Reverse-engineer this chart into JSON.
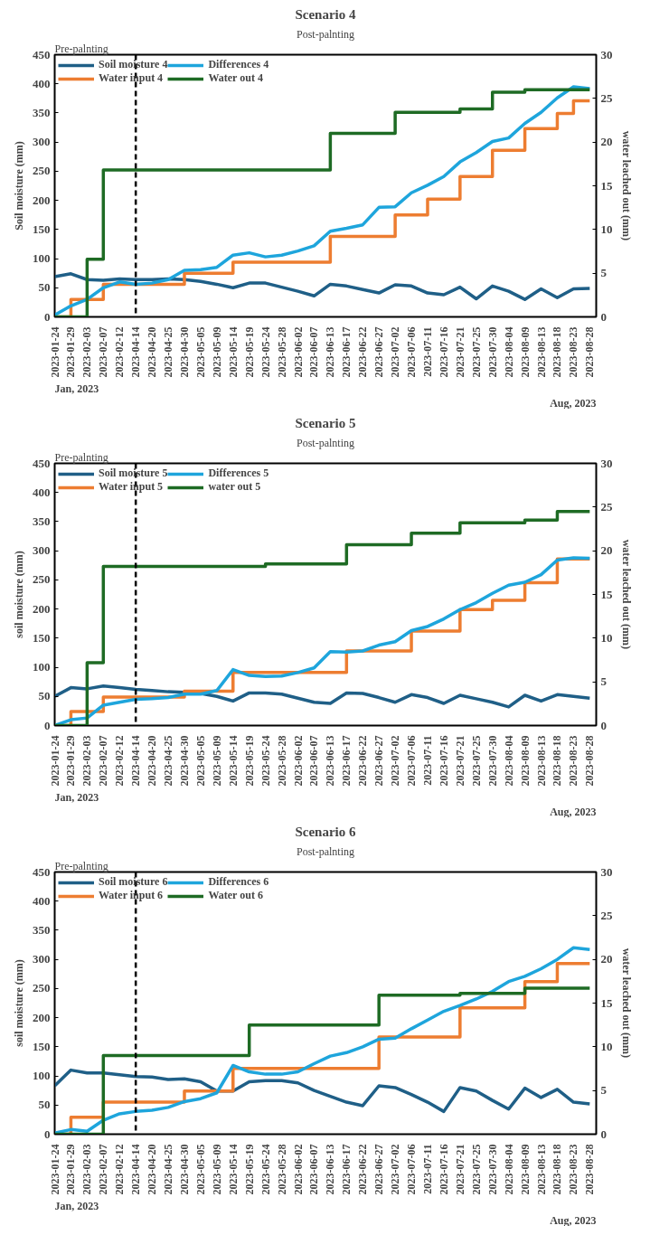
{
  "chart_data": [
    {
      "type": "line",
      "title": "Scenario 4",
      "ylabel": "Soil moisture (mm)",
      "y2label": "water leached out (mm)",
      "categories": [
        "2023-01-24",
        "2023-01-29",
        "2023-02-03",
        "2023-02-07",
        "2023-02-12",
        "2023-04-14",
        "2023-04-20",
        "2023-04-25",
        "2023-04-30",
        "2023-05-05",
        "2023-05-09",
        "2023-05-14",
        "2023-05-19",
        "2023-05-24",
        "2023-05-28",
        "2023-06-02",
        "2023-06-07",
        "2023-06-13",
        "2023-06-17",
        "2023-06-22",
        "2023-06-27",
        "2023-07-02",
        "2023-07-06",
        "2023-07-11",
        "2023-07-16",
        "2023-07-21",
        "2023-07-25",
        "2023-07-30",
        "2023-08-04",
        "2023-08-09",
        "2023-08-13",
        "2023-08-18",
        "2023-08-23",
        "2023-08-28"
      ],
      "series": [
        {
          "name": "Soil moisture 4",
          "type": "line",
          "color": "#1f5f87",
          "values": [
            69,
            74,
            64,
            63,
            65,
            64,
            64,
            65,
            64,
            61,
            56,
            50,
            58,
            58,
            51,
            44,
            36,
            56,
            53,
            47,
            41,
            55,
            53,
            41,
            38,
            51,
            31,
            53,
            44,
            30,
            48,
            33,
            48,
            49
          ]
        },
        {
          "name": "Water input 4",
          "type": "step",
          "color": "#ed7d31",
          "values": [
            0,
            30,
            30,
            56,
            56,
            56,
            56,
            56,
            75,
            75,
            75,
            94,
            94,
            94,
            94,
            94,
            94,
            138,
            138,
            138,
            138,
            175,
            175,
            202,
            202,
            241,
            241,
            286,
            286,
            323,
            323,
            349,
            371,
            371
          ]
        },
        {
          "name": "Differences 4",
          "type": "line",
          "color": "#1ea5dc",
          "values": [
            3,
            19,
            30,
            50,
            60,
            56,
            58,
            64,
            80,
            81,
            85,
            106,
            110,
            103,
            106,
            113,
            122,
            147,
            152,
            158,
            188,
            189,
            213,
            226,
            241,
            266,
            282,
            301,
            307,
            332,
            351,
            376,
            395,
            392
          ]
        },
        {
          "name": "Water out 4",
          "type": "step",
          "axis": "y2",
          "color": "#1e6b24",
          "values": [
            0,
            0,
            6.6,
            16.8,
            16.8,
            16.8,
            16.8,
            16.8,
            16.8,
            16.8,
            16.8,
            16.8,
            16.8,
            16.8,
            16.8,
            16.8,
            16.8,
            21,
            21,
            21,
            21,
            23.4,
            23.4,
            23.4,
            23.4,
            23.8,
            23.8,
            25.7,
            25.7,
            26,
            26,
            26,
            26,
            26
          ]
        }
      ],
      "ylim": [
        0,
        450
      ],
      "yticks": [
        0,
        50,
        100,
        150,
        200,
        250,
        300,
        350,
        400,
        450
      ],
      "y2lim": [
        0,
        30
      ],
      "y2ticks": [
        0,
        5,
        10,
        15,
        20,
        25,
        30
      ],
      "ref_lines": [
        {
          "axis": "x",
          "value": "2023-04-14",
          "line_style": "dashed",
          "color": "#000000"
        }
      ],
      "annotations": [
        "Pre-palnting",
        "Post-palnting",
        "Jan, 2023",
        "Aug, 2023"
      ],
      "legend": "top left",
      "grid": false,
      "marker": "none"
    },
    {
      "type": "line",
      "title": "Scenario 5",
      "ylabel": "soil moisture (mm)",
      "y2label": "water leached out (mm)",
      "categories": [
        "2023-01-24",
        "2023-01-29",
        "2023-02-03",
        "2023-02-07",
        "2023-02-12",
        "2023-04-14",
        "2023-04-20",
        "2023-04-25",
        "2023-04-30",
        "2023-05-05",
        "2023-05-09",
        "2023-05-14",
        "2023-05-19",
        "2023-05-24",
        "2023-05-28",
        "2023-06-02",
        "2023-06-07",
        "2023-06-13",
        "2023-06-17",
        "2023-06-22",
        "2023-06-27",
        "2023-07-02",
        "2023-07-06",
        "2023-07-11",
        "2023-07-16",
        "2023-07-21",
        "2023-07-25",
        "2023-07-30",
        "2023-08-04",
        "2023-08-09",
        "2023-08-13",
        "2023-08-18",
        "2023-08-23",
        "2023-08-28"
      ],
      "series": [
        {
          "name": "Soil moisture 5",
          "type": "line",
          "color": "#1f5f87",
          "values": [
            50,
            65,
            63,
            68,
            65,
            62,
            60,
            58,
            57,
            55,
            50,
            42,
            56,
            56,
            54,
            47,
            40,
            38,
            56,
            55,
            48,
            40,
            53,
            48,
            38,
            52,
            46,
            40,
            32,
            52,
            42,
            53,
            50,
            47
          ]
        },
        {
          "name": "Water input 5",
          "type": "step",
          "color": "#ed7d31",
          "values": [
            0,
            24,
            24,
            49,
            49,
            49,
            49,
            49,
            59,
            59,
            59,
            91,
            91,
            91,
            91,
            91,
            91,
            91,
            128,
            128,
            128,
            128,
            162,
            162,
            162,
            199,
            199,
            215,
            215,
            245,
            245,
            286,
            286,
            286
          ]
        },
        {
          "name": "Differences 5",
          "type": "line",
          "color": "#1ea5dc",
          "values": [
            0,
            10,
            13,
            35,
            40,
            45,
            46,
            48,
            54,
            54,
            60,
            96,
            86,
            84,
            85,
            91,
            99,
            127,
            126,
            128,
            138,
            144,
            163,
            170,
            183,
            199,
            211,
            227,
            241,
            246,
            259,
            284,
            288,
            287
          ]
        },
        {
          "name": "water out 5",
          "type": "step",
          "axis": "y2",
          "color": "#1e6b24",
          "values": [
            0,
            0,
            7.2,
            18.2,
            18.2,
            18.2,
            18.2,
            18.2,
            18.2,
            18.2,
            18.2,
            18.2,
            18.2,
            18.5,
            18.5,
            18.5,
            18.5,
            18.5,
            20.7,
            20.7,
            20.7,
            20.7,
            22,
            22,
            22,
            23.2,
            23.2,
            23.2,
            23.2,
            23.5,
            23.5,
            24.5,
            24.5,
            24.5
          ]
        }
      ],
      "ylim": [
        0,
        450
      ],
      "yticks": [
        0,
        50,
        100,
        150,
        200,
        250,
        300,
        350,
        400,
        450
      ],
      "y2lim": [
        0,
        30
      ],
      "y2ticks": [
        0,
        5,
        10,
        15,
        20,
        25,
        30
      ],
      "ref_lines": [
        {
          "axis": "x",
          "value": "2023-04-14",
          "line_style": "dashed",
          "color": "#000000"
        }
      ],
      "annotations": [
        "Pre-palnting",
        "Post-palnting",
        "Jan, 2023",
        "Aug, 2023"
      ],
      "legend": "top left",
      "grid": false,
      "marker": "none"
    },
    {
      "type": "line",
      "title": "Scenario 6",
      "ylabel": "soil moisture (mm)",
      "y2label": "water leached out (mm)",
      "categories": [
        "2023-01-24",
        "2023-01-29",
        "2023-02-03",
        "2023-02-07",
        "2023-02-12",
        "2023-04-14",
        "2023-04-20",
        "2023-04-25",
        "2023-04-30",
        "2023-05-05",
        "2023-05-09",
        "2023-05-14",
        "2023-05-19",
        "2023-05-24",
        "2023-05-28",
        "2023-06-02",
        "2023-06-07",
        "2023-06-13",
        "2023-06-17",
        "2023-06-22",
        "2023-06-27",
        "2023-07-02",
        "2023-07-06",
        "2023-07-11",
        "2023-07-16",
        "2023-07-21",
        "2023-07-25",
        "2023-07-30",
        "2023-08-04",
        "2023-08-09",
        "2023-08-13",
        "2023-08-18",
        "2023-08-23",
        "2023-08-28"
      ],
      "series": [
        {
          "name": "Soil moisture 6",
          "type": "line",
          "color": "#1f5f87",
          "values": [
            83,
            110,
            105,
            105,
            102,
            99,
            98,
            94,
            95,
            90,
            74,
            74,
            90,
            92,
            92,
            88,
            75,
            65,
            55,
            49,
            83,
            80,
            68,
            55,
            39,
            80,
            74,
            58,
            43,
            79,
            63,
            77,
            55,
            52
          ]
        },
        {
          "name": "Water input 6",
          "type": "step",
          "color": "#ed7d31",
          "values": [
            0,
            29,
            29,
            55,
            55,
            55,
            55,
            55,
            74,
            74,
            74,
            113,
            113,
            113,
            113,
            113,
            113,
            113,
            113,
            113,
            167,
            167,
            167,
            167,
            167,
            217,
            217,
            217,
            217,
            262,
            262,
            293,
            293,
            293
          ]
        },
        {
          "name": "Differences 6",
          "type": "line",
          "color": "#1ea5dc",
          "values": [
            2,
            8,
            5,
            24,
            35,
            39,
            41,
            46,
            56,
            61,
            71,
            118,
            107,
            103,
            103,
            107,
            121,
            134,
            140,
            150,
            163,
            165,
            181,
            196,
            211,
            221,
            232,
            245,
            262,
            271,
            284,
            300,
            320,
            317
          ]
        },
        {
          "name": "Water out 6",
          "type": "step",
          "axis": "y2",
          "color": "#1e6b24",
          "values": [
            0,
            0,
            0,
            9,
            9,
            9,
            9,
            9,
            9,
            9,
            9,
            9,
            12.5,
            12.5,
            12.5,
            12.5,
            12.5,
            12.5,
            12.5,
            12.5,
            15.9,
            15.9,
            15.9,
            15.9,
            15.9,
            16.1,
            16.1,
            16.1,
            16.1,
            16.7,
            16.7,
            16.7,
            16.7,
            16.7
          ]
        }
      ],
      "ylim": [
        0,
        450
      ],
      "yticks": [
        0,
        50,
        100,
        150,
        200,
        250,
        300,
        350,
        400,
        450
      ],
      "y2lim": [
        0,
        30
      ],
      "y2ticks": [
        0,
        5,
        10,
        15,
        20,
        25,
        30
      ],
      "ref_lines": [
        {
          "axis": "x",
          "value": "2023-04-14",
          "line_style": "dashed",
          "color": "#000000"
        }
      ],
      "annotations": [
        "Pre-palnting",
        "Post-palnting",
        "Jan, 2023",
        "Aug, 2023"
      ],
      "legend": "top left",
      "grid": false,
      "marker": "none"
    }
  ]
}
